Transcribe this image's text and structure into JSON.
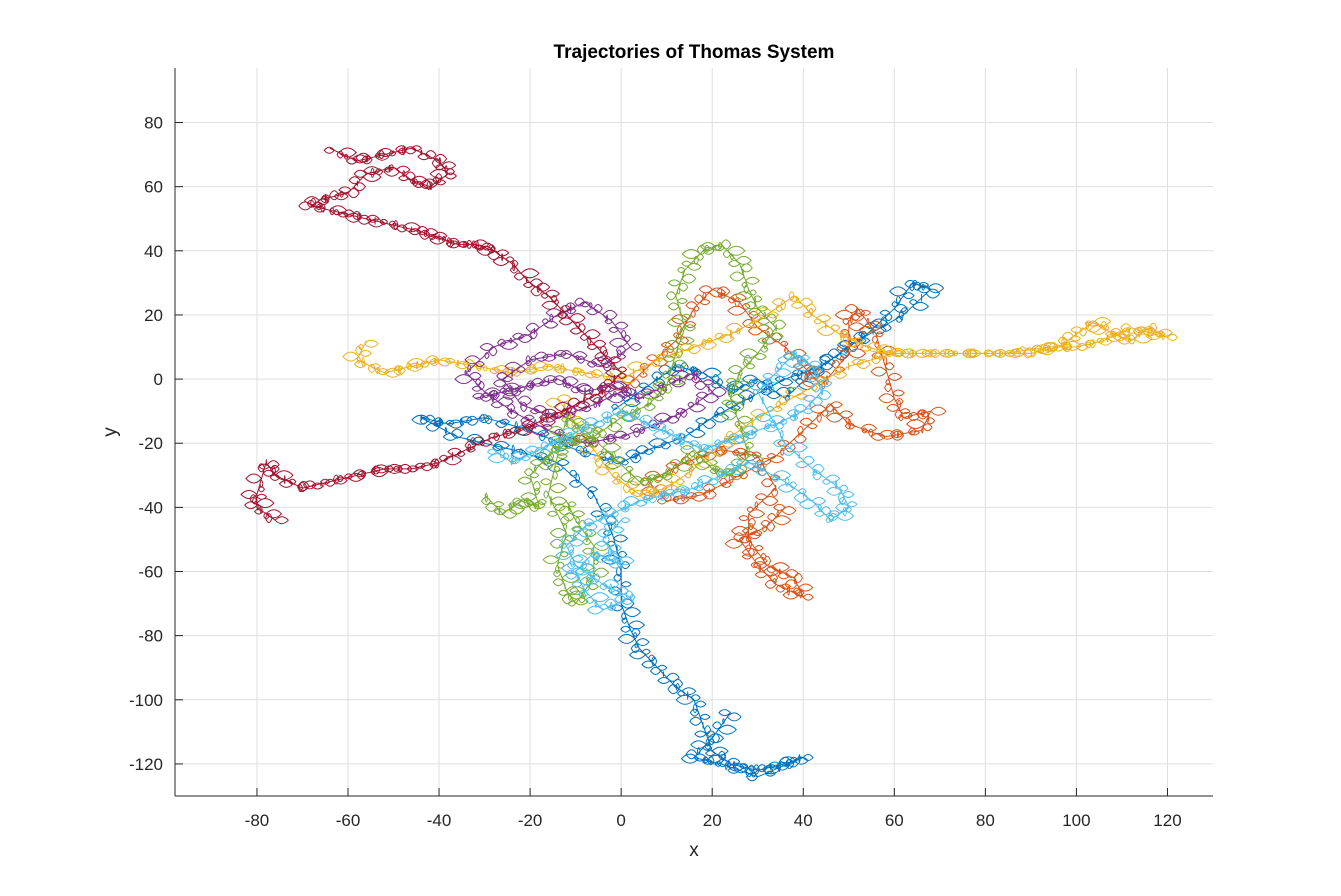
{
  "chart_data": {
    "type": "line",
    "title": "Trajectories of Thomas System",
    "xlabel": "x",
    "ylabel": "y",
    "xlim": [
      -98,
      130
    ],
    "ylim": [
      -130,
      97
    ],
    "xticks": [
      -80,
      -60,
      -40,
      -20,
      0,
      20,
      40,
      60,
      80,
      100,
      120
    ],
    "yticks": [
      80,
      60,
      40,
      20,
      0,
      -20,
      -40,
      -60,
      -80,
      -100,
      -120
    ],
    "grid": true,
    "legend": "none",
    "series": [
      {
        "color": "#0072BD",
        "values": [
          [
            -2,
            -10
          ],
          [
            6,
            -2
          ],
          [
            12,
            4
          ],
          [
            18,
            2
          ],
          [
            24,
            -4
          ],
          [
            30,
            0
          ],
          [
            36,
            -6
          ],
          [
            42,
            2
          ],
          [
            48,
            8
          ],
          [
            54,
            14
          ],
          [
            60,
            22
          ],
          [
            64,
            30
          ],
          [
            68,
            28
          ],
          [
            62,
            20
          ],
          [
            52,
            12
          ],
          [
            44,
            4
          ],
          [
            36,
            0
          ],
          [
            28,
            -6
          ],
          [
            20,
            -12
          ],
          [
            14,
            -18
          ],
          [
            6,
            -22
          ],
          [
            0,
            -26
          ],
          [
            -10,
            -22
          ],
          [
            -20,
            -16
          ],
          [
            -30,
            -12
          ],
          [
            -38,
            -14
          ],
          [
            -44,
            -12
          ],
          [
            -36,
            -18
          ],
          [
            -24,
            -22
          ],
          [
            -14,
            -26
          ],
          [
            -6,
            -36
          ],
          [
            -2,
            -48
          ],
          [
            0,
            -58
          ],
          [
            0,
            -70
          ],
          [
            2,
            -78
          ],
          [
            4,
            -84
          ],
          [
            8,
            -90
          ],
          [
            12,
            -96
          ],
          [
            16,
            -100
          ],
          [
            18,
            -108
          ],
          [
            20,
            -116
          ],
          [
            24,
            -120
          ],
          [
            30,
            -122
          ],
          [
            36,
            -120
          ],
          [
            40,
            -118
          ],
          [
            30,
            -124
          ],
          [
            22,
            -120
          ],
          [
            16,
            -118
          ],
          [
            20,
            -112
          ],
          [
            24,
            -104
          ]
        ]
      },
      {
        "color": "#D95319",
        "values": [
          [
            0,
            -4
          ],
          [
            6,
            4
          ],
          [
            12,
            12
          ],
          [
            16,
            22
          ],
          [
            20,
            28
          ],
          [
            26,
            24
          ],
          [
            30,
            16
          ],
          [
            36,
            10
          ],
          [
            40,
            4
          ],
          [
            44,
            -2
          ],
          [
            50,
            8
          ],
          [
            50,
            18
          ],
          [
            52,
            22
          ],
          [
            56,
            14
          ],
          [
            58,
            4
          ],
          [
            60,
            -6
          ],
          [
            62,
            -12
          ],
          [
            68,
            -10
          ],
          [
            66,
            -16
          ],
          [
            58,
            -18
          ],
          [
            50,
            -14
          ],
          [
            46,
            -8
          ],
          [
            40,
            -16
          ],
          [
            34,
            -24
          ],
          [
            26,
            -30
          ],
          [
            18,
            -36
          ],
          [
            10,
            -38
          ],
          [
            6,
            -32
          ],
          [
            14,
            -26
          ],
          [
            22,
            -22
          ],
          [
            30,
            -24
          ],
          [
            34,
            -34
          ],
          [
            28,
            -42
          ],
          [
            28,
            -50
          ],
          [
            32,
            -58
          ],
          [
            38,
            -62
          ],
          [
            40,
            -68
          ],
          [
            34,
            -64
          ],
          [
            30,
            -58
          ],
          [
            26,
            -50
          ],
          [
            32,
            -46
          ],
          [
            36,
            -40
          ]
        ]
      },
      {
        "color": "#EDB120",
        "values": [
          [
            -56,
            12
          ],
          [
            -58,
            6
          ],
          [
            -52,
            2
          ],
          [
            -46,
            4
          ],
          [
            -40,
            6
          ],
          [
            -32,
            4
          ],
          [
            -24,
            2
          ],
          [
            -16,
            4
          ],
          [
            -8,
            2
          ],
          [
            0,
            0
          ],
          [
            8,
            6
          ],
          [
            16,
            10
          ],
          [
            24,
            14
          ],
          [
            32,
            20
          ],
          [
            38,
            26
          ],
          [
            42,
            20
          ],
          [
            48,
            14
          ],
          [
            54,
            10
          ],
          [
            60,
            8
          ],
          [
            70,
            8
          ],
          [
            80,
            8
          ],
          [
            90,
            8
          ],
          [
            96,
            10
          ],
          [
            100,
            14
          ],
          [
            104,
            18
          ],
          [
            108,
            14
          ],
          [
            112,
            12
          ],
          [
            116,
            16
          ],
          [
            120,
            13
          ],
          [
            112,
            16
          ],
          [
            106,
            12
          ],
          [
            100,
            10
          ],
          [
            94,
            10
          ],
          [
            84,
            8
          ],
          [
            72,
            8
          ],
          [
            60,
            8
          ],
          [
            50,
            4
          ],
          [
            40,
            -4
          ],
          [
            30,
            -12
          ],
          [
            22,
            -20
          ],
          [
            16,
            -28
          ],
          [
            10,
            -34
          ],
          [
            4,
            -36
          ],
          [
            -2,
            -30
          ],
          [
            -6,
            -22
          ],
          [
            -10,
            -14
          ],
          [
            -14,
            -6
          ]
        ]
      },
      {
        "color": "#7E2F8E",
        "values": [
          [
            -32,
            -6
          ],
          [
            -26,
            -4
          ],
          [
            -20,
            -2
          ],
          [
            -14,
            0
          ],
          [
            -8,
            -4
          ],
          [
            -2,
            -2
          ],
          [
            4,
            -6
          ],
          [
            10,
            -2
          ],
          [
            16,
            2
          ],
          [
            20,
            -4
          ],
          [
            14,
            -10
          ],
          [
            8,
            -14
          ],
          [
            0,
            -18
          ],
          [
            -8,
            -20
          ],
          [
            -16,
            -16
          ],
          [
            -24,
            -10
          ],
          [
            -30,
            -4
          ],
          [
            -34,
            2
          ],
          [
            -28,
            10
          ],
          [
            -20,
            14
          ],
          [
            -14,
            20
          ],
          [
            -8,
            24
          ],
          [
            -2,
            18
          ],
          [
            2,
            10
          ],
          [
            -4,
            4
          ],
          [
            -12,
            8
          ],
          [
            -20,
            6
          ],
          [
            -26,
            0
          ],
          [
            -22,
            -8
          ],
          [
            -14,
            -12
          ],
          [
            -6,
            -8
          ],
          [
            0,
            -4
          ]
        ]
      },
      {
        "color": "#77AC30",
        "values": [
          [
            -30,
            -36
          ],
          [
            -26,
            -42
          ],
          [
            -22,
            -38
          ],
          [
            -18,
            -40
          ],
          [
            -20,
            -30
          ],
          [
            -16,
            -24
          ],
          [
            -12,
            -20
          ],
          [
            -6,
            -18
          ],
          [
            0,
            -12
          ],
          [
            6,
            -8
          ],
          [
            10,
            -2
          ],
          [
            12,
            8
          ],
          [
            14,
            16
          ],
          [
            12,
            26
          ],
          [
            14,
            34
          ],
          [
            18,
            40
          ],
          [
            22,
            42
          ],
          [
            26,
            36
          ],
          [
            28,
            28
          ],
          [
            30,
            22
          ],
          [
            34,
            16
          ],
          [
            30,
            8
          ],
          [
            26,
            2
          ],
          [
            24,
            -6
          ],
          [
            26,
            -14
          ],
          [
            28,
            -24
          ],
          [
            24,
            -30
          ],
          [
            20,
            -28
          ],
          [
            16,
            -22
          ],
          [
            10,
            -30
          ],
          [
            4,
            -32
          ],
          [
            -2,
            -24
          ],
          [
            -8,
            -16
          ],
          [
            -12,
            -12
          ],
          [
            -14,
            -24
          ],
          [
            -16,
            -36
          ],
          [
            -12,
            -48
          ],
          [
            -14,
            -58
          ],
          [
            -12,
            -66
          ],
          [
            -10,
            -70
          ],
          [
            -6,
            -62
          ],
          [
            -6,
            -52
          ],
          [
            -10,
            -44
          ],
          [
            -12,
            -38
          ]
        ]
      },
      {
        "color": "#4DBEEE",
        "values": [
          [
            -28,
            -22
          ],
          [
            -24,
            -26
          ],
          [
            -18,
            -22
          ],
          [
            -12,
            -18
          ],
          [
            -6,
            -14
          ],
          [
            0,
            -10
          ],
          [
            6,
            -14
          ],
          [
            12,
            -18
          ],
          [
            18,
            -22
          ],
          [
            26,
            -18
          ],
          [
            34,
            -14
          ],
          [
            40,
            -10
          ],
          [
            44,
            -4
          ],
          [
            42,
            4
          ],
          [
            38,
            8
          ],
          [
            34,
            2
          ],
          [
            30,
            -4
          ],
          [
            36,
            -20
          ],
          [
            42,
            -28
          ],
          [
            48,
            -34
          ],
          [
            50,
            -40
          ],
          [
            46,
            -44
          ],
          [
            42,
            -38
          ],
          [
            36,
            -32
          ],
          [
            28,
            -26
          ],
          [
            22,
            -30
          ],
          [
            16,
            -34
          ],
          [
            10,
            -36
          ],
          [
            4,
            -38
          ],
          [
            -2,
            -42
          ],
          [
            -8,
            -46
          ],
          [
            -12,
            -52
          ],
          [
            -10,
            -58
          ],
          [
            -4,
            -64
          ],
          [
            2,
            -68
          ],
          [
            -4,
            -72
          ],
          [
            -8,
            -66
          ],
          [
            -10,
            -60
          ],
          [
            -6,
            -54
          ],
          [
            0,
            -58
          ],
          [
            -4,
            -50
          ],
          [
            0,
            -44
          ]
        ]
      },
      {
        "color": "#A2142F",
        "values": [
          [
            -64,
            72
          ],
          [
            -58,
            68
          ],
          [
            -52,
            70
          ],
          [
            -46,
            72
          ],
          [
            -40,
            68
          ],
          [
            -38,
            64
          ],
          [
            -42,
            60
          ],
          [
            -46,
            62
          ],
          [
            -50,
            66
          ],
          [
            -56,
            64
          ],
          [
            -60,
            58
          ],
          [
            -66,
            56
          ],
          [
            -68,
            54
          ],
          [
            -62,
            52
          ],
          [
            -56,
            50
          ],
          [
            -50,
            48
          ],
          [
            -44,
            46
          ],
          [
            -40,
            44
          ],
          [
            -36,
            42
          ],
          [
            -32,
            42
          ],
          [
            -28,
            40
          ],
          [
            -24,
            36
          ],
          [
            -20,
            30
          ],
          [
            -16,
            26
          ],
          [
            -12,
            20
          ],
          [
            -8,
            14
          ],
          [
            -4,
            8
          ],
          [
            0,
            2
          ],
          [
            -4,
            -4
          ],
          [
            -10,
            -8
          ],
          [
            -16,
            -12
          ],
          [
            -22,
            -16
          ],
          [
            -28,
            -18
          ],
          [
            -34,
            -22
          ],
          [
            -40,
            -26
          ],
          [
            -46,
            -28
          ],
          [
            -52,
            -28
          ],
          [
            -58,
            -30
          ],
          [
            -64,
            -32
          ],
          [
            -70,
            -34
          ],
          [
            -76,
            -30
          ],
          [
            -78,
            -26
          ],
          [
            -80,
            -36
          ],
          [
            -80,
            -40
          ],
          [
            -76,
            -44
          ]
        ]
      }
    ]
  }
}
